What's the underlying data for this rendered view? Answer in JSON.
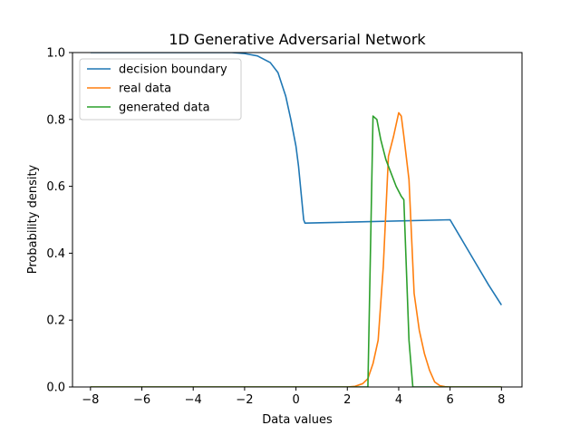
{
  "chart_data": {
    "type": "line",
    "title": "1D Generative Adversarial Network",
    "xlabel": "Data values",
    "ylabel": "Probability density",
    "xlim": [
      -8.7,
      8.8
    ],
    "ylim": [
      0,
      1.0
    ],
    "xticks": [
      -8,
      -6,
      -4,
      -2,
      0,
      2,
      4,
      6,
      8
    ],
    "yticks": [
      0.0,
      0.2,
      0.4,
      0.6,
      0.8,
      1.0
    ],
    "xtick_labels": [
      "−8",
      "−6",
      "−4",
      "−2",
      "0",
      "2",
      "4",
      "6",
      "8"
    ],
    "ytick_labels": [
      "0.0",
      "0.2",
      "0.4",
      "0.6",
      "0.8",
      "1.0"
    ],
    "grid": false,
    "legend_position": "top-left",
    "series": [
      {
        "name": "decision boundary",
        "color": "#1f77b4",
        "x": [
          -8,
          -3.5,
          -2.5,
          -2.0,
          -1.5,
          -1.0,
          -0.7,
          -0.4,
          -0.2,
          0.0,
          0.1,
          0.2,
          0.3,
          0.35,
          6.0,
          6.5,
          7.0,
          7.5,
          8.0
        ],
        "y": [
          1.0,
          1.0,
          1.0,
          0.997,
          0.99,
          0.97,
          0.94,
          0.87,
          0.8,
          0.72,
          0.66,
          0.58,
          0.5,
          0.49,
          0.5,
          0.435,
          0.37,
          0.305,
          0.245
        ]
      },
      {
        "name": "real data",
        "color": "#ff7f0e",
        "x": [
          -8,
          2.0,
          2.3,
          2.6,
          2.8,
          3.0,
          3.2,
          3.4,
          3.6,
          3.8,
          4.0,
          4.1,
          4.2,
          4.4,
          4.6,
          4.8,
          5.0,
          5.2,
          5.4,
          5.6,
          5.8,
          6.0,
          8.0
        ],
        "y": [
          0,
          0,
          0.002,
          0.01,
          0.025,
          0.07,
          0.14,
          0.36,
          0.69,
          0.75,
          0.82,
          0.81,
          0.75,
          0.62,
          0.28,
          0.17,
          0.1,
          0.05,
          0.015,
          0.004,
          0.001,
          0,
          0
        ]
      },
      {
        "name": "generated data",
        "color": "#2ca02c",
        "x": [
          -8,
          2.8,
          3.0,
          3.15,
          3.3,
          3.5,
          3.7,
          3.9,
          4.1,
          4.2,
          4.4,
          4.55,
          8.0
        ],
        "y": [
          0,
          0,
          0.81,
          0.8,
          0.74,
          0.68,
          0.64,
          0.6,
          0.57,
          0.56,
          0.14,
          0,
          0
        ]
      }
    ]
  }
}
